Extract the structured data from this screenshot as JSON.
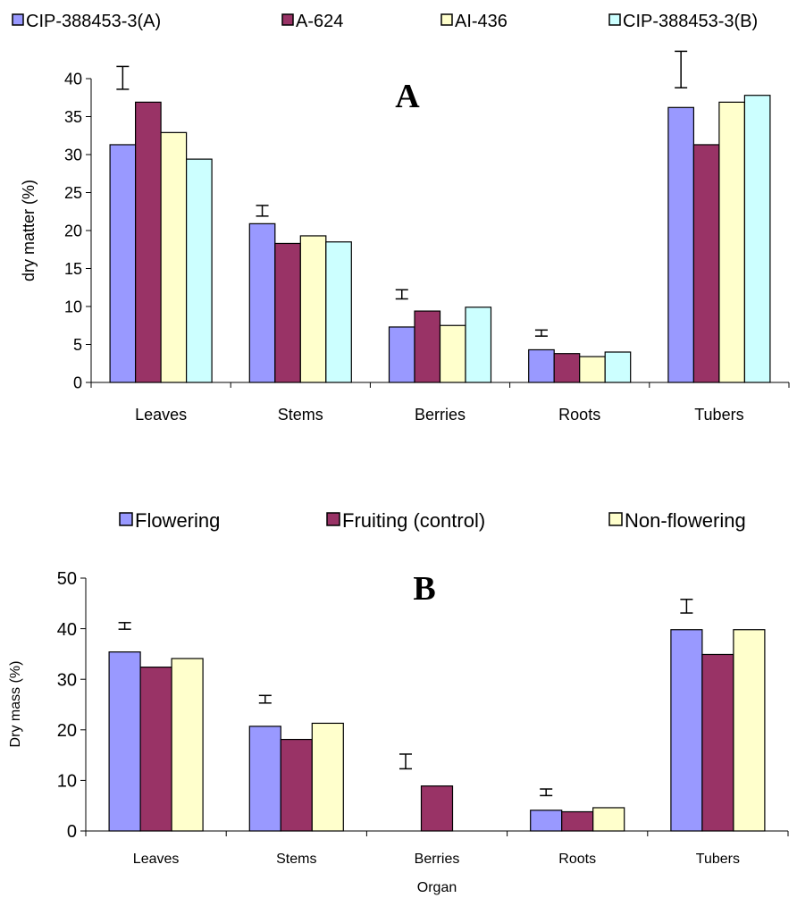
{
  "chart_data": [
    {
      "type": "bar",
      "panel_label": "A",
      "title": "",
      "xlabel": "",
      "ylabel": "dry matter (%)",
      "ylim": [
        0,
        40
      ],
      "yticks": [
        0,
        5,
        10,
        15,
        20,
        25,
        30,
        35,
        40
      ],
      "categories": [
        "Leaves",
        "Stems",
        "Berries",
        "Roots",
        "Tubers"
      ],
      "series": [
        {
          "name": "CIP-388453-3(A)",
          "color": "#9999ff",
          "values": [
            31.3,
            20.9,
            7.3,
            4.3,
            36.2
          ]
        },
        {
          "name": "A-624",
          "color": "#993366",
          "values": [
            36.9,
            18.3,
            9.4,
            3.8,
            31.3
          ]
        },
        {
          "name": "AI-436",
          "color": "#ffffcc",
          "values": [
            32.9,
            19.3,
            7.5,
            3.4,
            36.9
          ]
        },
        {
          "name": "CIP-388453-3(B)",
          "color": "#ccffff",
          "values": [
            29.4,
            18.5,
            9.9,
            4.0,
            37.8
          ]
        }
      ],
      "error_bars": [
        {
          "category": "Leaves",
          "low": 38.6,
          "high": 41.6
        },
        {
          "category": "Stems",
          "low": 21.9,
          "high": 23.3
        },
        {
          "category": "Berries",
          "low": 11.0,
          "high": 12.2
        },
        {
          "category": "Roots",
          "low": 6.1,
          "high": 6.9
        },
        {
          "category": "Tubers",
          "low": 38.8,
          "high": 43.6
        }
      ],
      "legend_position": "top",
      "grid": false
    },
    {
      "type": "bar",
      "panel_label": "B",
      "title": "",
      "xlabel": "Organ",
      "ylabel": "Dry mass (%)",
      "ylim": [
        0,
        50
      ],
      "yticks": [
        0,
        10,
        20,
        30,
        40,
        50
      ],
      "categories": [
        "Leaves",
        "Stems",
        "Berries",
        "Roots",
        "Tubers"
      ],
      "series": [
        {
          "name": "Flowering",
          "color": "#9999ff",
          "values": [
            35.4,
            20.7,
            0,
            4.1,
            39.8
          ]
        },
        {
          "name": "Fruiting (control)",
          "color": "#993366",
          "values": [
            32.4,
            18.1,
            8.9,
            3.8,
            34.9
          ]
        },
        {
          "name": "Non-flowering",
          "color": "#ffffcc",
          "values": [
            34.1,
            21.3,
            0,
            4.6,
            39.8
          ]
        }
      ],
      "error_bars": [
        {
          "category": "Leaves",
          "low": 39.9,
          "high": 41.2
        },
        {
          "category": "Stems",
          "low": 25.3,
          "high": 26.8
        },
        {
          "category": "Berries",
          "low": 12.3,
          "high": 15.2
        },
        {
          "category": "Roots",
          "low": 7.0,
          "high": 8.3
        },
        {
          "category": "Tubers",
          "low": 43.1,
          "high": 45.8
        }
      ],
      "legend_position": "top",
      "grid": false
    }
  ]
}
